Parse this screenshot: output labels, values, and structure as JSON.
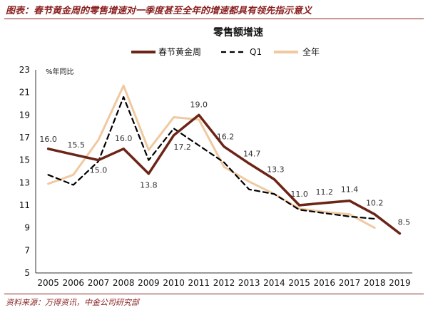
{
  "header": {
    "title": "图表：春节黄金周的零售增速对一季度甚至全年的增速都具有领先指示意义"
  },
  "source": "资料来源：万得资讯，中金公司研究部",
  "chart_data": {
    "type": "line",
    "title": "零售额增速",
    "unit_label": "%年同比",
    "x": [
      2005,
      2006,
      2007,
      2008,
      2009,
      2010,
      2011,
      2012,
      2013,
      2014,
      2015,
      2016,
      2017,
      2018,
      2019
    ],
    "ylim": [
      5,
      23
    ],
    "yticks": [
      5,
      7,
      9,
      11,
      13,
      15,
      17,
      19,
      21,
      23
    ],
    "legend_position": "top",
    "series": [
      {
        "name": "春节黄金周",
        "color": "#6b2416",
        "style": "solid",
        "values": [
          16.0,
          15.5,
          15.0,
          16.0,
          13.8,
          17.2,
          19.0,
          16.2,
          14.7,
          13.3,
          11.0,
          11.2,
          11.4,
          10.2,
          8.5
        ],
        "labels": [
          "16.0",
          "15.5",
          "15.0",
          "16.0",
          "13.8",
          "17.2",
          "19.0",
          "16.2",
          "14.7",
          "13.3",
          "11.0",
          "11.2",
          "11.4",
          "10.2",
          "8.5"
        ]
      },
      {
        "name": "Q1",
        "color": "#000000",
        "style": "dashed",
        "values": [
          13.7,
          12.8,
          14.9,
          20.6,
          15.0,
          17.8,
          16.3,
          14.8,
          12.4,
          12.0,
          10.6,
          10.3,
          10.0,
          9.8,
          null
        ]
      },
      {
        "name": "全年",
        "color": "#f0c9a0",
        "style": "solid",
        "values": [
          12.9,
          13.7,
          16.8,
          21.6,
          15.9,
          18.8,
          18.6,
          14.4,
          13.1,
          12.0,
          10.7,
          10.4,
          10.2,
          9.0,
          null
        ]
      }
    ]
  }
}
